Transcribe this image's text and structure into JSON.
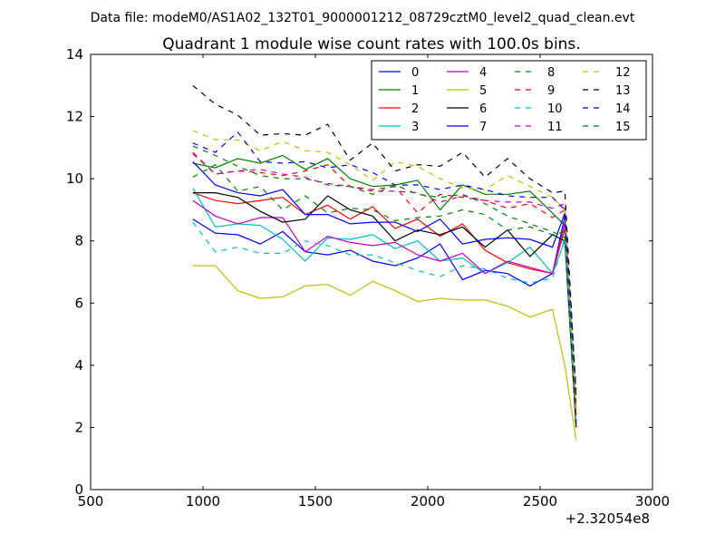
{
  "suptitle": "Data file: modeM0/AS1A02_132T01_9000001212_08729cztM0_level2_quad_clean.evt",
  "chart_data": {
    "type": "line",
    "title": "Quadrant 1 module wise count rates with 100.0s bins.",
    "xlabel": "",
    "ylabel": "",
    "x_offset_label": "+2.32054e8",
    "xlim": [
      500,
      3000
    ],
    "ylim": [
      0,
      14
    ],
    "xticks": [
      500,
      1000,
      1500,
      2000,
      2500,
      3000
    ],
    "yticks": [
      0,
      2,
      4,
      6,
      8,
      10,
      12,
      14
    ],
    "grid": false,
    "legend": {
      "location": "top-right",
      "ncol": 4
    },
    "x": [
      955,
      1055,
      1155,
      1255,
      1355,
      1455,
      1555,
      1655,
      1755,
      1855,
      1955,
      2055,
      2155,
      2255,
      2355,
      2455,
      2555,
      2610,
      2660
    ],
    "series": [
      {
        "name": "0",
        "color": "#0000ff",
        "dash": "solid",
        "values": [
          8.7,
          8.25,
          8.2,
          7.9,
          8.3,
          7.65,
          7.55,
          7.7,
          7.35,
          7.2,
          7.45,
          7.9,
          6.75,
          7.05,
          6.95,
          6.55,
          6.95,
          8.8,
          2.1
        ]
      },
      {
        "name": "1",
        "color": "#008000",
        "dash": "solid",
        "values": [
          10.5,
          10.35,
          10.65,
          10.5,
          10.75,
          10.3,
          10.65,
          10.0,
          9.75,
          9.8,
          9.95,
          9.0,
          9.8,
          9.5,
          9.5,
          9.6,
          8.9,
          8.5,
          2.2
        ]
      },
      {
        "name": "2",
        "color": "#ff0000",
        "dash": "solid",
        "values": [
          9.55,
          9.3,
          9.2,
          9.3,
          9.4,
          8.85,
          9.15,
          8.7,
          9.1,
          8.4,
          8.7,
          8.15,
          8.55,
          7.7,
          7.3,
          7.1,
          6.95,
          8.4,
          2.0
        ]
      },
      {
        "name": "3",
        "color": "#00bfbf",
        "dash": "solid",
        "values": [
          9.7,
          8.45,
          8.55,
          8.5,
          8.05,
          7.35,
          8.1,
          8.05,
          8.2,
          7.75,
          8.0,
          7.35,
          7.45,
          6.95,
          7.3,
          7.8,
          6.95,
          8.0,
          2.4
        ]
      },
      {
        "name": "4",
        "color": "#bf00bf",
        "dash": "solid",
        "values": [
          9.3,
          8.8,
          8.55,
          8.75,
          8.75,
          7.65,
          8.15,
          7.95,
          7.85,
          7.95,
          7.55,
          7.35,
          7.6,
          6.95,
          7.35,
          7.15,
          6.95,
          8.6,
          2.2
        ]
      },
      {
        "name": "5",
        "color": "#bfbf00",
        "dash": "solid",
        "values": [
          7.2,
          7.2,
          6.4,
          6.15,
          6.2,
          6.55,
          6.6,
          6.25,
          6.7,
          6.4,
          6.05,
          6.15,
          6.1,
          6.1,
          5.9,
          5.55,
          5.8,
          4.0,
          1.6
        ]
      },
      {
        "name": "6",
        "color": "#000000",
        "dash": "solid",
        "values": [
          9.55,
          9.55,
          9.4,
          8.95,
          8.6,
          8.7,
          9.45,
          9.0,
          8.8,
          8.0,
          8.35,
          8.2,
          8.45,
          7.8,
          8.35,
          7.5,
          8.2,
          8.0,
          2.0
        ]
      },
      {
        "name": "7",
        "color": "#0000ff",
        "dash": "solid",
        "values": [
          10.55,
          9.8,
          9.55,
          9.45,
          9.65,
          8.85,
          8.85,
          8.55,
          8.6,
          8.6,
          8.3,
          8.7,
          7.9,
          8.05,
          8.1,
          8.05,
          7.8,
          8.9,
          2.6
        ]
      },
      {
        "name": "8",
        "color": "#008000",
        "dash": "dashed",
        "values": [
          10.05,
          10.45,
          9.6,
          9.75,
          9.0,
          9.45,
          8.9,
          9.05,
          9.0,
          8.65,
          8.75,
          8.8,
          9.0,
          8.85,
          8.35,
          8.45,
          8.2,
          8.3,
          2.3
        ]
      },
      {
        "name": "9",
        "color": "#ff0000",
        "dash": "dashed",
        "values": [
          10.85,
          10.15,
          10.25,
          10.2,
          10.1,
          10.25,
          10.45,
          9.75,
          9.65,
          9.75,
          8.9,
          9.5,
          9.4,
          9.3,
          9.05,
          9.2,
          8.75,
          9.0,
          2.4
        ]
      },
      {
        "name": "10",
        "color": "#00bfbf",
        "dash": "dashed",
        "values": [
          8.6,
          7.65,
          7.8,
          7.6,
          7.6,
          8.0,
          7.85,
          7.55,
          7.55,
          7.3,
          7.05,
          6.85,
          7.2,
          7.1,
          6.8,
          6.65,
          6.8,
          8.1,
          2.2
        ]
      },
      {
        "name": "11",
        "color": "#bf00bf",
        "dash": "dashed",
        "values": [
          10.8,
          10.15,
          10.25,
          10.3,
          10.15,
          10.05,
          9.8,
          9.75,
          9.6,
          9.6,
          9.55,
          9.25,
          9.45,
          9.3,
          9.25,
          9.25,
          9.05,
          9.2,
          2.4
        ]
      },
      {
        "name": "12",
        "color": "#bfbf00",
        "dash": "dashed",
        "values": [
          11.55,
          11.25,
          11.25,
          10.9,
          11.2,
          10.9,
          10.85,
          10.45,
          9.95,
          10.55,
          10.4,
          10.0,
          9.7,
          9.65,
          10.1,
          9.75,
          9.4,
          9.0,
          2.6
        ]
      },
      {
        "name": "13",
        "color": "#000000",
        "dash": "dashed",
        "values": [
          13.0,
          12.4,
          12.05,
          11.4,
          11.45,
          11.4,
          11.75,
          10.6,
          11.15,
          10.25,
          10.45,
          10.4,
          10.85,
          10.05,
          10.65,
          10.0,
          9.55,
          9.6,
          3.0
        ]
      },
      {
        "name": "14",
        "color": "#0000ff",
        "dash": "dashed",
        "values": [
          11.15,
          10.85,
          11.5,
          10.55,
          10.5,
          10.55,
          10.35,
          10.45,
          10.2,
          9.8,
          9.8,
          9.65,
          9.8,
          9.65,
          9.45,
          9.4,
          9.4,
          9.0,
          3.2
        ]
      },
      {
        "name": "15",
        "color": "#008000",
        "dash": "dashed",
        "values": [
          11.05,
          10.75,
          10.4,
          10.1,
          10.0,
          10.0,
          9.85,
          9.75,
          9.5,
          9.8,
          9.5,
          9.4,
          9.5,
          9.2,
          8.8,
          8.55,
          8.3,
          8.1,
          2.8
        ]
      }
    ]
  }
}
